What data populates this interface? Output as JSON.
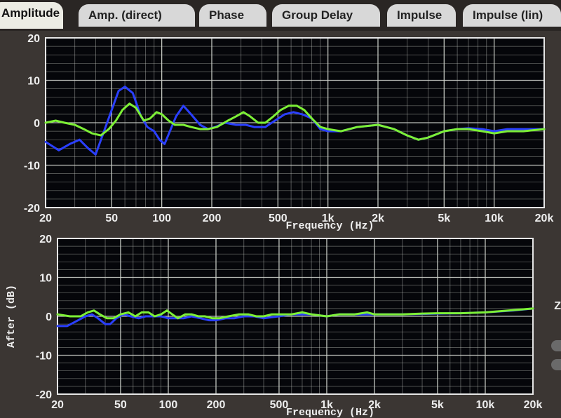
{
  "tabs": [
    {
      "label": "Amplitude",
      "active": true
    },
    {
      "label": "Amp. (direct)",
      "active": false
    },
    {
      "label": "Phase",
      "active": false
    },
    {
      "label": "Group Delay",
      "active": false
    },
    {
      "label": "Impulse",
      "active": false
    },
    {
      "label": "Impulse (lin)",
      "active": false
    }
  ],
  "side_label": "Z",
  "colors": {
    "series1": "#2a3fff",
    "series2": "#7df036",
    "background": "#05060a",
    "grid": "#cfd3cc",
    "text": "#eeeeee"
  },
  "charts": [
    {
      "type": "line",
      "xlabel": "Frequency (Hz)",
      "ylabel": "",
      "x_scale": "log",
      "xlim": [
        20,
        20000
      ],
      "ylim": [
        -20,
        20
      ],
      "x_ticks": [
        {
          "v": 20,
          "label": "20"
        },
        {
          "v": 50,
          "label": "50"
        },
        {
          "v": 100,
          "label": "100"
        },
        {
          "v": 200,
          "label": "200"
        },
        {
          "v": 500,
          "label": "500"
        },
        {
          "v": 1000,
          "label": "1k"
        },
        {
          "v": 2000,
          "label": "2k"
        },
        {
          "v": 5000,
          "label": "5k"
        },
        {
          "v": 10000,
          "label": "10k"
        },
        {
          "v": 20000,
          "label": "20k"
        }
      ],
      "y_ticks": [
        {
          "v": 20,
          "label": "20"
        },
        {
          "v": 10,
          "label": "10"
        },
        {
          "v": 0,
          "label": "0"
        },
        {
          "v": -10,
          "label": "-10"
        },
        {
          "v": -20,
          "label": "-20"
        }
      ],
      "series": [
        {
          "color": "#2a3fff",
          "points": [
            [
              20,
              -4.5
            ],
            [
              24,
              -6.5
            ],
            [
              28,
              -5
            ],
            [
              32,
              -4
            ],
            [
              36,
              -6
            ],
            [
              40,
              -7.5
            ],
            [
              44,
              -3
            ],
            [
              50,
              3
            ],
            [
              55,
              7.5
            ],
            [
              60,
              8.5
            ],
            [
              67,
              7
            ],
            [
              75,
              1.5
            ],
            [
              82,
              -1
            ],
            [
              90,
              -2
            ],
            [
              97,
              -4
            ],
            [
              104,
              -5
            ],
            [
              112,
              -2
            ],
            [
              122,
              1.5
            ],
            [
              135,
              4
            ],
            [
              150,
              2
            ],
            [
              170,
              -0.5
            ],
            [
              190,
              -1.5
            ],
            [
              210,
              -1
            ],
            [
              240,
              0
            ],
            [
              280,
              -0.5
            ],
            [
              320,
              -0.5
            ],
            [
              360,
              -1
            ],
            [
              420,
              -1
            ],
            [
              480,
              0.5
            ],
            [
              550,
              2
            ],
            [
              620,
              2.5
            ],
            [
              700,
              2
            ],
            [
              800,
              1
            ],
            [
              900,
              -1.5
            ],
            [
              1000,
              -2
            ],
            [
              1200,
              -2
            ],
            [
              1500,
              -1
            ],
            [
              2000,
              -0.5
            ],
            [
              2500,
              -1.5
            ],
            [
              3000,
              -3
            ],
            [
              3500,
              -4
            ],
            [
              4000,
              -3.5
            ],
            [
              5000,
              -2
            ],
            [
              6000,
              -1.5
            ],
            [
              7000,
              -1.3
            ],
            [
              8500,
              -1.5
            ],
            [
              10000,
              -2
            ],
            [
              12000,
              -1.5
            ],
            [
              14000,
              -1.5
            ],
            [
              17000,
              -1.5
            ],
            [
              20000,
              -1.5
            ]
          ]
        },
        {
          "color": "#7df036",
          "points": [
            [
              20,
              0
            ],
            [
              23,
              0.5
            ],
            [
              26,
              0
            ],
            [
              30,
              -0.5
            ],
            [
              34,
              -1.5
            ],
            [
              38,
              -2.5
            ],
            [
              43,
              -3
            ],
            [
              48,
              -1.5
            ],
            [
              53,
              0.5
            ],
            [
              58,
              3
            ],
            [
              64,
              4.5
            ],
            [
              70,
              3.5
            ],
            [
              78,
              0.5
            ],
            [
              85,
              1
            ],
            [
              93,
              2.5
            ],
            [
              100,
              2
            ],
            [
              110,
              0.5
            ],
            [
              120,
              -0.5
            ],
            [
              135,
              -0.5
            ],
            [
              150,
              -1
            ],
            [
              170,
              -1.5
            ],
            [
              190,
              -1.5
            ],
            [
              215,
              -1
            ],
            [
              250,
              0.5
            ],
            [
              280,
              1.5
            ],
            [
              310,
              2.5
            ],
            [
              340,
              1.5
            ],
            [
              380,
              0
            ],
            [
              420,
              0
            ],
            [
              470,
              1.5
            ],
            [
              520,
              3
            ],
            [
              580,
              4
            ],
            [
              650,
              4
            ],
            [
              720,
              3
            ],
            [
              800,
              1
            ],
            [
              900,
              -1
            ],
            [
              1000,
              -1.5
            ],
            [
              1200,
              -2
            ],
            [
              1500,
              -1
            ],
            [
              2000,
              -0.5
            ],
            [
              2500,
              -1.5
            ],
            [
              3000,
              -3
            ],
            [
              3500,
              -4
            ],
            [
              4000,
              -3.5
            ],
            [
              5000,
              -2
            ],
            [
              6000,
              -1.5
            ],
            [
              7000,
              -1.5
            ],
            [
              8500,
              -2
            ],
            [
              10000,
              -2.5
            ],
            [
              12000,
              -2
            ],
            [
              15000,
              -2
            ],
            [
              20000,
              -1.5
            ]
          ]
        }
      ]
    },
    {
      "type": "line",
      "xlabel": "Frequency (Hz)",
      "ylabel": "After (dB)",
      "x_scale": "log",
      "xlim": [
        20,
        20000
      ],
      "ylim": [
        -20,
        20
      ],
      "x_ticks": [
        {
          "v": 20,
          "label": "20"
        },
        {
          "v": 50,
          "label": "50"
        },
        {
          "v": 100,
          "label": "100"
        },
        {
          "v": 200,
          "label": "200"
        },
        {
          "v": 500,
          "label": "500"
        },
        {
          "v": 1000,
          "label": "1k"
        },
        {
          "v": 2000,
          "label": "2k"
        },
        {
          "v": 5000,
          "label": "5k"
        },
        {
          "v": 10000,
          "label": "10k"
        },
        {
          "v": 20000,
          "label": "20k"
        }
      ],
      "y_ticks": [
        {
          "v": 20,
          "label": "20"
        },
        {
          "v": 10,
          "label": "10"
        },
        {
          "v": 0,
          "label": "0"
        },
        {
          "v": -10,
          "label": "-10"
        },
        {
          "v": -20,
          "label": "-20"
        }
      ],
      "series": [
        {
          "color": "#2a3fff",
          "points": [
            [
              20,
              -2.5
            ],
            [
              23,
              -2.5
            ],
            [
              27,
              -1
            ],
            [
              30,
              0
            ],
            [
              33,
              0.5
            ],
            [
              36,
              -0.5
            ],
            [
              40,
              -2
            ],
            [
              43,
              -2
            ],
            [
              47,
              -0.5
            ],
            [
              52,
              0.5
            ],
            [
              58,
              0
            ],
            [
              65,
              -0.5
            ],
            [
              72,
              0
            ],
            [
              80,
              0
            ],
            [
              90,
              0
            ],
            [
              100,
              -0.5
            ],
            [
              110,
              -0.5
            ],
            [
              125,
              -0.5
            ],
            [
              140,
              0
            ],
            [
              160,
              -0.5
            ],
            [
              180,
              -1
            ],
            [
              200,
              -1
            ],
            [
              230,
              -0.5
            ],
            [
              260,
              -0.5
            ],
            [
              300,
              0
            ],
            [
              350,
              0
            ],
            [
              400,
              -0.5
            ],
            [
              500,
              0
            ],
            [
              600,
              0.5
            ],
            [
              700,
              0.5
            ],
            [
              800,
              0.5
            ],
            [
              1000,
              0
            ],
            [
              1200,
              0.5
            ],
            [
              1500,
              0.5
            ],
            [
              2000,
              0.5
            ],
            [
              3000,
              0.5
            ],
            [
              5000,
              0.7
            ],
            [
              7000,
              0.8
            ],
            [
              10000,
              1
            ],
            [
              15000,
              1.5
            ],
            [
              20000,
              2
            ]
          ]
        },
        {
          "color": "#7df036",
          "points": [
            [
              20,
              0.5
            ],
            [
              24,
              0
            ],
            [
              28,
              0
            ],
            [
              31,
              1
            ],
            [
              34,
              1.5
            ],
            [
              37,
              0.5
            ],
            [
              41,
              -0.5
            ],
            [
              45,
              -0.5
            ],
            [
              50,
              0.5
            ],
            [
              56,
              1
            ],
            [
              62,
              0
            ],
            [
              68,
              1
            ],
            [
              75,
              1
            ],
            [
              82,
              0
            ],
            [
              90,
              0.5
            ],
            [
              98,
              1.5
            ],
            [
              106,
              0.5
            ],
            [
              115,
              -0.5
            ],
            [
              128,
              0.5
            ],
            [
              140,
              0.5
            ],
            [
              155,
              0
            ],
            [
              170,
              0
            ],
            [
              190,
              -0.5
            ],
            [
              210,
              -0.5
            ],
            [
              240,
              0
            ],
            [
              280,
              0.5
            ],
            [
              320,
              0.5
            ],
            [
              360,
              0
            ],
            [
              400,
              0
            ],
            [
              450,
              0.5
            ],
            [
              520,
              0.5
            ],
            [
              600,
              0.5
            ],
            [
              700,
              1
            ],
            [
              800,
              0.5
            ],
            [
              1000,
              0
            ],
            [
              1200,
              0.5
            ],
            [
              1500,
              0.5
            ],
            [
              1800,
              1
            ],
            [
              2000,
              0.5
            ],
            [
              2500,
              0.5
            ],
            [
              3000,
              0.5
            ],
            [
              4000,
              0.7
            ],
            [
              5000,
              0.8
            ],
            [
              7000,
              0.8
            ],
            [
              10000,
              1
            ],
            [
              14000,
              1.5
            ],
            [
              20000,
              2
            ]
          ]
        }
      ]
    }
  ]
}
